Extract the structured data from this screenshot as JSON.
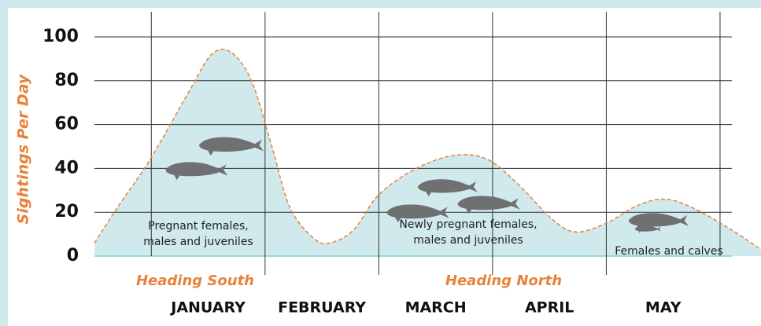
{
  "chart_data": {
    "type": "area",
    "y_label": "Sightings Per Day",
    "categories": [
      "JANUARY",
      "FEBRUARY",
      "MARCH",
      "APRIL",
      "MAY"
    ],
    "x": [
      -0.5,
      -0.3,
      0,
      0.33,
      0.53,
      0.7,
      0.88,
      1.06,
      1.22,
      1.43,
      1.57,
      1.78,
      2.0,
      2.33,
      2.67,
      2.96,
      3.24,
      3.52,
      3.73,
      4.0,
      4.27,
      4.51,
      4.76,
      5.1,
      5.36
    ],
    "values": [
      6,
      22,
      45,
      75,
      92,
      93,
      80,
      50,
      22,
      8,
      6,
      12,
      28,
      40,
      46,
      44,
      32,
      17,
      11,
      15,
      23,
      26,
      22,
      12,
      3
    ],
    "xlim": [
      -0.5,
      5.36
    ],
    "ylim": [
      0,
      100
    ],
    "yticks": [
      0,
      20,
      40,
      60,
      80,
      100
    ],
    "grid": true,
    "fill_color": "#cfe9ec",
    "line_color": "#e8823a",
    "annotations": [
      {
        "lines": [
          "Pregnant females,",
          "males and juveniles"
        ]
      },
      {
        "lines": [
          "Newly pregnant females,",
          "males and juveniles"
        ]
      },
      {
        "lines": [
          "Females and calves"
        ]
      }
    ],
    "direction_labels": [
      "Heading South",
      "Heading North"
    ]
  }
}
